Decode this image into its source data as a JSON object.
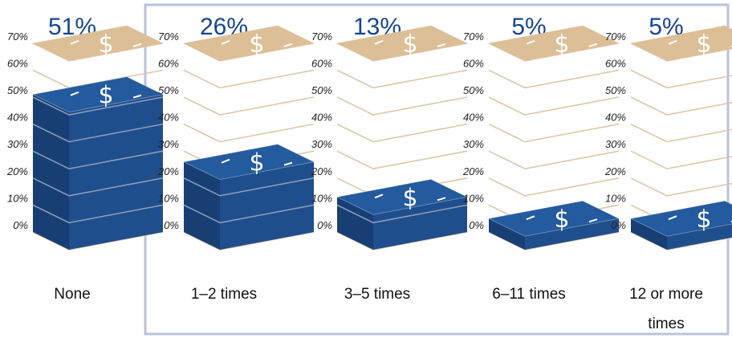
{
  "chart_data": {
    "type": "bar",
    "categories": [
      "None",
      "1–2 times",
      "3–5 times",
      "6–11 times",
      "12 or more times"
    ],
    "category_lines": [
      [
        "None"
      ],
      [
        "1–2 times"
      ],
      [
        "3–5 times"
      ],
      [
        "6–11 times"
      ],
      [
        "12 or more",
        "times"
      ]
    ],
    "values": [
      51,
      26,
      13,
      5,
      5
    ],
    "value_labels": [
      "51%",
      "26%",
      "13%",
      "5%",
      "5%"
    ],
    "yticks": [
      "0%",
      "10%",
      "20%",
      "30%",
      "40%",
      "50%",
      "60%",
      "70%"
    ],
    "ylim": [
      0,
      70
    ],
    "grid": true,
    "bar_symbol": "$",
    "colors": {
      "bar_front": "#1f4e8c",
      "bar_side": "#173f74",
      "bar_top": "#245a9e",
      "cap_fill": "#dcbf96",
      "guide_lines": "#dcc7a7",
      "percent_text": "#17468c",
      "frame": "#b9c3d8",
      "slice_lines": "#8a9bb8"
    }
  }
}
